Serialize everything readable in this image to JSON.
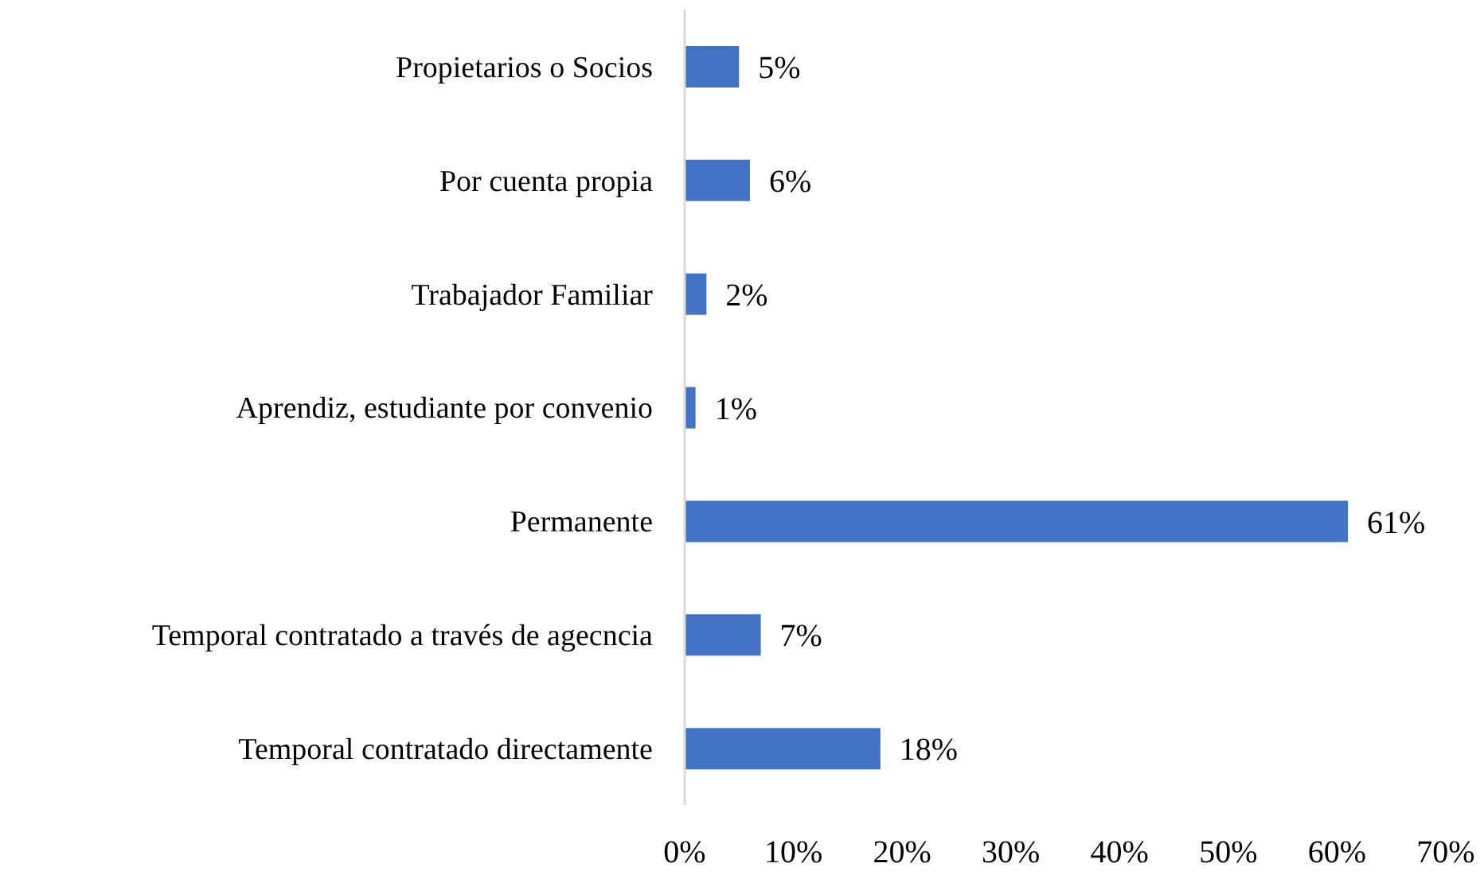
{
  "chart_data": {
    "type": "bar",
    "orientation": "horizontal",
    "categories": [
      "Propietarios o Socios",
      "Por cuenta propia",
      "Trabajador Familiar",
      "Aprendiz, estudiante por convenio",
      "Permanente",
      "Temporal contratado a través de agecncia",
      "Temporal contratado directamente"
    ],
    "values": [
      5,
      6,
      2,
      1,
      61,
      7,
      18
    ],
    "value_labels": [
      "5%",
      "6%",
      "2%",
      "1%",
      "61%",
      "7%",
      "18%"
    ],
    "color": "#4472c4",
    "xlim": [
      0,
      70
    ],
    "xticks": [
      {
        "value": 0,
        "label": "0%"
      },
      {
        "value": 10,
        "label": "10%"
      },
      {
        "value": 20,
        "label": "20%"
      },
      {
        "value": 30,
        "label": "30%"
      },
      {
        "value": 40,
        "label": "40%"
      },
      {
        "value": 50,
        "label": "50%"
      },
      {
        "value": 60,
        "label": "60%"
      },
      {
        "value": 70,
        "label": "70%"
      }
    ]
  }
}
